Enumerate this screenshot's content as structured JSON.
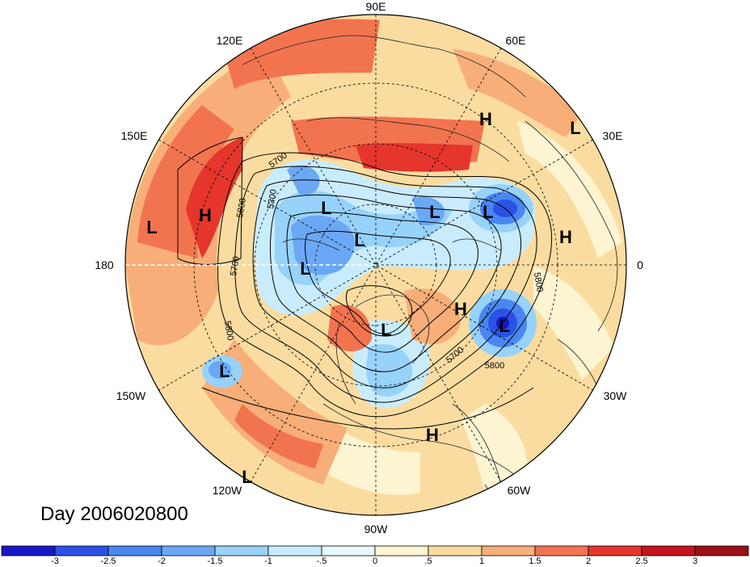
{
  "title": "Day 2006020800",
  "longitude_labels": [
    "90E",
    "60E",
    "120E",
    "30E",
    "150E",
    "180",
    "0",
    "150W",
    "30W",
    "120W",
    "60W",
    "90W"
  ],
  "pressure_systems": [
    {
      "type": "H",
      "name": "h-siberia"
    },
    {
      "type": "L",
      "name": "l-scandinavia"
    },
    {
      "type": "L",
      "name": "l-west-pacific"
    },
    {
      "type": "H",
      "name": "h-west-pacific"
    },
    {
      "type": "L",
      "name": "l-east-siberia-1"
    },
    {
      "type": "L",
      "name": "l-east-siberia-2"
    },
    {
      "type": "L",
      "name": "l-north-russia"
    },
    {
      "type": "L",
      "name": "l-barents"
    },
    {
      "type": "H",
      "name": "h-africa"
    },
    {
      "type": "L",
      "name": "l-alaska"
    },
    {
      "type": "H",
      "name": "h-greenland"
    },
    {
      "type": "L",
      "name": "l-north-atlantic"
    },
    {
      "type": "L",
      "name": "l-hudson"
    },
    {
      "type": "L",
      "name": "l-east-pacific"
    },
    {
      "type": "H",
      "name": "h-caribbean"
    },
    {
      "type": "L",
      "name": "l-southwest"
    }
  ],
  "contour_labels": [
    "5700",
    "5800",
    "5300",
    "5800",
    "5700",
    "5800",
    "5800",
    "5700",
    "5800"
  ],
  "colorbar": {
    "ticks": [
      "-3",
      "-2.5",
      "-2",
      "-1.5",
      "-1",
      "-.5",
      "0",
      ".5",
      "1",
      "1.5",
      "2",
      "2.5",
      "3"
    ],
    "colors": [
      "#1a17c8",
      "#2b52e6",
      "#4a86f0",
      "#6aa8f5",
      "#97d2fa",
      "#c9ecfd",
      "#e9f8fd",
      "#fdf4d2",
      "#fbdca0",
      "#f7ae78",
      "#f2744f",
      "#e5352d",
      "#c5141e",
      "#991018"
    ]
  },
  "colors": {
    "ocean_warm": "#f7ae78",
    "land": "#fdf4d2",
    "cold": "#6aa8f5",
    "deep_cold": "#1a17c8",
    "hot": "#e5352d"
  }
}
